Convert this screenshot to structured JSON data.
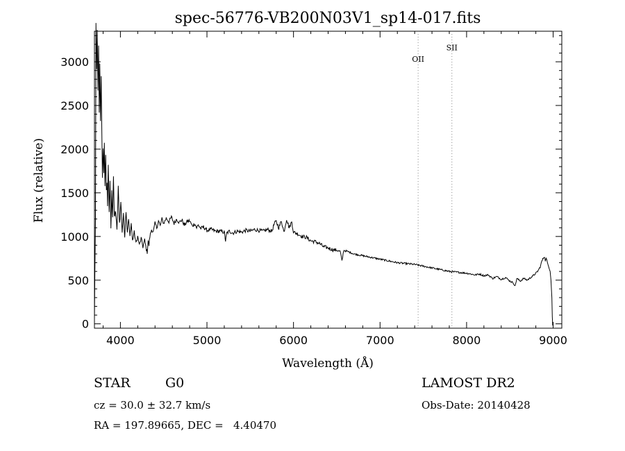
{
  "chart_data": {
    "type": "line",
    "title": "spec-56776-VB200N03V1_sp14-017.fits",
    "xlabel": "Wavelength (Å)",
    "ylabel": "Flux (relative)",
    "xlim": [
      3700,
      9100
    ],
    "ylim": [
      -50,
      3350
    ],
    "xticks": [
      4000,
      5000,
      6000,
      7000,
      8000,
      9000
    ],
    "yticks": [
      0,
      500,
      1000,
      1500,
      2000,
      2500,
      3000
    ],
    "grid": false,
    "line_color": "#000000",
    "lines": [
      {
        "label": "OII",
        "x": 7440,
        "label_y": 3000,
        "color": "#888888",
        "style": "dotted"
      },
      {
        "label": "SII",
        "x": 7830,
        "label_y": 3130,
        "color": "#888888",
        "style": "dotted"
      }
    ],
    "series": [
      {
        "x": [
          3700,
          3705,
          3712,
          3718,
          3725,
          3732,
          3740,
          3748,
          3755,
          3762,
          3770,
          3778,
          3785,
          3792,
          3800,
          3808,
          3815,
          3822,
          3830,
          3838,
          3845,
          3852,
          3860,
          3870,
          3880,
          3890,
          3900,
          3910,
          3920,
          3930,
          3945,
          3960,
          3975,
          3990,
          4005,
          4020,
          4035,
          4050,
          4065,
          4080,
          4095,
          4110,
          4125,
          4140,
          4160,
          4180,
          4200,
          4220,
          4240,
          4260,
          4280,
          4300,
          4310,
          4320,
          4330,
          4340,
          4360,
          4380,
          4400,
          4420,
          4440,
          4460,
          4480,
          4500,
          4530,
          4560,
          4590,
          4620,
          4650,
          4680,
          4710,
          4740,
          4770,
          4800,
          4830,
          4860,
          4880,
          4900,
          4930,
          4960,
          5000,
          5050,
          5100,
          5150,
          5200,
          5215,
          5230,
          5260,
          5300,
          5350,
          5400,
          5450,
          5500,
          5550,
          5600,
          5650,
          5700,
          5750,
          5780,
          5800,
          5830,
          5860,
          5890,
          5920,
          5950,
          5980,
          6000,
          6050,
          6100,
          6150,
          6200,
          6250,
          6300,
          6350,
          6400,
          6450,
          6500,
          6540,
          6560,
          6580,
          6620,
          6700,
          6800,
          6900,
          7000,
          7100,
          7200,
          7300,
          7400,
          7500,
          7600,
          7700,
          7800,
          7900,
          8000,
          8100,
          8150,
          8200,
          8250,
          8300,
          8350,
          8400,
          8450,
          8500,
          8540,
          8560,
          8580,
          8620,
          8660,
          8700,
          8740,
          8780,
          8820,
          8850,
          8870,
          8880,
          8890,
          8900,
          8910,
          8920,
          8935,
          8950,
          8965,
          8975,
          8985,
          8990,
          8995,
          9000
        ],
        "y": [
          30,
          600,
          1200,
          3400,
          2900,
          3350,
          2700,
          3150,
          2400,
          2950,
          2300,
          2850,
          2200,
          1700,
          2000,
          1750,
          2100,
          1550,
          1900,
          1500,
          1650,
          1350,
          1800,
          1300,
          1600,
          1100,
          1500,
          1250,
          1700,
          1200,
          1300,
          1050,
          1550,
          1150,
          1400,
          1050,
          1250,
          1000,
          1300,
          1050,
          1200,
          1000,
          1150,
          950,
          1050,
          920,
          1000,
          900,
          980,
          880,
          960,
          850,
          820,
          950,
          900,
          1000,
          1080,
          1050,
          1150,
          1100,
          1180,
          1120,
          1200,
          1150,
          1210,
          1170,
          1220,
          1150,
          1200,
          1160,
          1190,
          1130,
          1170,
          1180,
          1120,
          1150,
          1100,
          1130,
          1090,
          1110,
          1070,
          1080,
          1060,
          1060,
          1050,
          950,
          1040,
          1060,
          1040,
          1060,
          1050,
          1070,
          1060,
          1080,
          1070,
          1060,
          1080,
          1060,
          1150,
          1170,
          1100,
          1180,
          1050,
          1200,
          1100,
          1170,
          1050,
          1030,
          1000,
          990,
          950,
          940,
          920,
          880,
          870,
          850,
          840,
          830,
          720,
          840,
          830,
          800,
          780,
          760,
          740,
          720,
          700,
          690,
          680,
          660,
          640,
          620,
          600,
          590,
          580,
          560,
          570,
          550,
          560,
          520,
          540,
          510,
          530,
          490,
          470,
          430,
          520,
          490,
          520,
          500,
          530,
          560,
          600,
          650,
          720,
          740,
          760,
          770,
          720,
          750,
          700,
          650,
          600,
          500,
          300,
          80,
          -20,
          0
        ]
      }
    ]
  },
  "info": {
    "object_class": "STAR",
    "subclass": "G0",
    "survey": "LAMOST DR2",
    "cz": "cz = 30.0 ± 32.7 km/s",
    "obs_date": "Obs-Date: 20140428",
    "coords": "RA = 197.89665, DEC =   4.40470"
  }
}
